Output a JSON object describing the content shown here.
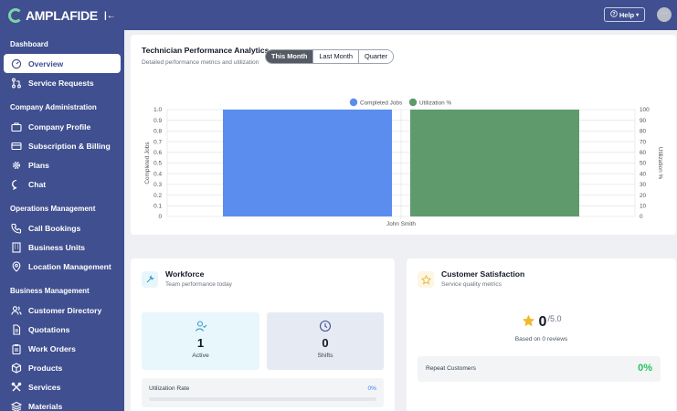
{
  "brand": {
    "name": "AMPLAFIDE",
    "collapse_label": "|←"
  },
  "sidebar": {
    "sections": [
      {
        "label": "Dashboard",
        "items": [
          {
            "label": "Overview",
            "icon": "gauge-icon",
            "active": true
          },
          {
            "label": "Service Requests",
            "icon": "pull-request-icon"
          }
        ]
      },
      {
        "label": "Company Administration",
        "items": [
          {
            "label": "Company Profile",
            "icon": "briefcase-icon"
          },
          {
            "label": "Subscription & Billing",
            "icon": "credit-card-icon"
          },
          {
            "label": "Plans",
            "icon": "gear-icon"
          },
          {
            "label": "Chat",
            "icon": "chat-bubble-icon"
          }
        ]
      },
      {
        "label": "Operations Management",
        "items": [
          {
            "label": "Call Bookings",
            "icon": "phone-icon"
          },
          {
            "label": "Business Units",
            "icon": "building-icon"
          },
          {
            "label": "Location Management",
            "icon": "map-pin-icon"
          }
        ]
      },
      {
        "label": "Business Management",
        "items": [
          {
            "label": "Customer Directory",
            "icon": "user-group-icon"
          },
          {
            "label": "Quotations",
            "icon": "document-icon"
          },
          {
            "label": "Work Orders",
            "icon": "clipboard-icon"
          },
          {
            "label": "Products",
            "icon": "box-icon"
          },
          {
            "label": "Services",
            "icon": "tools-icon"
          },
          {
            "label": "Materials",
            "icon": "layers-icon"
          }
        ]
      }
    ]
  },
  "topbar": {
    "help_label": "Help",
    "avatar_label": "···"
  },
  "analytics": {
    "title": "Technician Performance Analytics",
    "subtitle": "Detailed performance metrics and utilization",
    "periods": [
      "This Month",
      "Last Month",
      "Quarter"
    ],
    "active_period": "This Month"
  },
  "chart_data": {
    "type": "bar",
    "categories": [
      "John Smith"
    ],
    "series": [
      {
        "name": "Completed Jobs",
        "values": [
          1.0
        ],
        "color": "#5b8def",
        "axis": "left"
      },
      {
        "name": "Utilization %",
        "values": [
          100
        ],
        "color": "#5f9a6c",
        "axis": "right"
      }
    ],
    "ylabel": "Completed Jobs",
    "y2label": "Utilization %",
    "ylim": [
      0,
      1.0
    ],
    "y2lim": [
      0,
      100
    ],
    "yticks": [
      "1.0",
      "0.9",
      "0.8",
      "0.7",
      "0.6",
      "0.5",
      "0.4",
      "0.3",
      "0.2",
      "0.1",
      "0"
    ],
    "y2ticks": [
      "100",
      "90",
      "80",
      "70",
      "60",
      "50",
      "40",
      "30",
      "20",
      "10",
      "0"
    ],
    "legend": "top-center",
    "grid": true
  },
  "workforce": {
    "title": "Workforce",
    "subtitle": "Team performance today",
    "active_count": "1",
    "active_label": "Active",
    "shifts_count": "0",
    "shifts_label": "Shifts",
    "utilization_label": "Utilization Rate",
    "utilization_value": "0%",
    "utilization_fraction": 0
  },
  "satisfaction": {
    "title": "Customer Satisfaction",
    "subtitle": "Service quality metrics",
    "rating": "0",
    "rating_max": "/5.0",
    "reviews_text": "Based on 0 reviews",
    "repeat_label": "Repeat Customers",
    "repeat_value": "0%"
  },
  "colors": {
    "sidebar": "#3f4f8f",
    "accent_green": "#22c55e",
    "link_blue": "#3b82f6"
  }
}
